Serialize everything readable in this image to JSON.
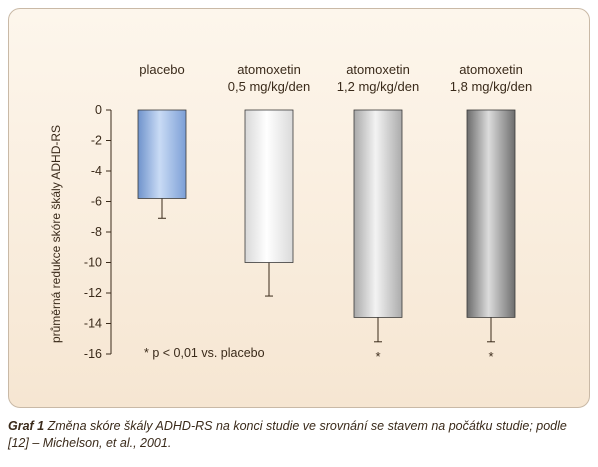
{
  "chart_data": {
    "type": "bar",
    "categories": [
      [
        "placebo"
      ],
      [
        "atomoxetin",
        "0,5 mg/kg/den"
      ],
      [
        "atomoxetin",
        "1,2 mg/kg/den"
      ],
      [
        "atomoxetin",
        "1,8 mg/kg/den"
      ]
    ],
    "values": [
      -5.8,
      -10.0,
      -13.6,
      -13.6
    ],
    "error_low": [
      -7.1,
      -12.2,
      -15.2,
      -15.2
    ],
    "significance": [
      "",
      "",
      "*",
      "*"
    ],
    "ylabel": "průměrná redukce skóre škály ADHD-RS",
    "ylim": [
      -16,
      0
    ],
    "yticks": [
      0,
      -2,
      -4,
      -6,
      -8,
      -10,
      -12,
      -14,
      -16
    ],
    "ytick_labels": [
      "0",
      "-2",
      "-4",
      "-6",
      "-8",
      "-10",
      "-12",
      "-14",
      "-16"
    ],
    "annotation": "* p < 0,01 vs. placebo",
    "grid": false,
    "bar_colors": [
      "#9ab6e2",
      "#eeeeee",
      "#c8c8c8",
      "#8c8c8c"
    ]
  },
  "caption": {
    "lead": "Graf 1",
    "text": "Změna skóre škály ADHD-RS na konci studie ve srovnání se stavem na počátku studie; podle [12] – Michelson, et al., 2001."
  }
}
